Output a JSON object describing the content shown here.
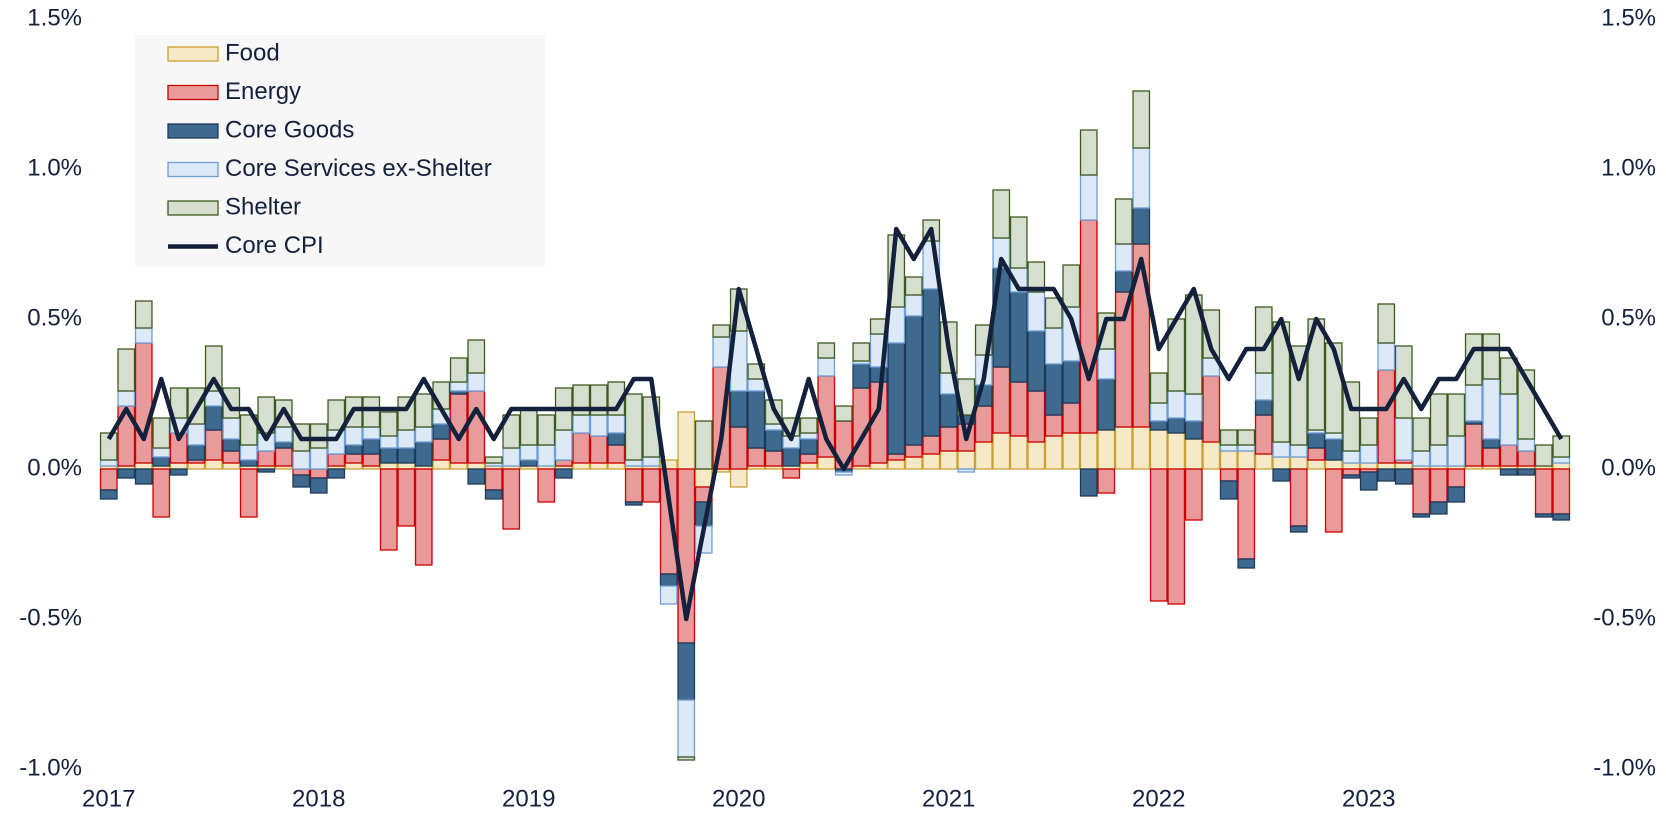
{
  "chart_data": {
    "type": "bar",
    "stacked": true,
    "legend": "upper left",
    "grid": false,
    "categories": [
      "2017",
      null,
      null,
      null,
      null,
      null,
      null,
      null,
      null,
      null,
      null,
      null,
      "2018",
      null,
      null,
      null,
      null,
      null,
      null,
      null,
      null,
      null,
      null,
      null,
      "2019",
      null,
      null,
      null,
      null,
      null,
      null,
      null,
      null,
      null,
      null,
      null,
      "2020",
      null,
      null,
      null,
      null,
      null,
      null,
      null,
      null,
      null,
      null,
      null,
      "2021",
      null,
      null,
      null,
      null,
      null,
      null,
      null,
      null,
      null,
      null,
      null,
      "2022",
      null,
      null,
      null,
      null,
      null,
      null,
      null,
      null,
      null,
      null,
      null,
      "2023",
      null,
      null,
      null,
      null,
      null,
      null,
      null,
      null,
      null,
      null,
      null
    ],
    "ylim": [
      -1.0,
      1.5
    ],
    "yticks": [
      {
        "value": -1.0,
        "label": "-1.0%"
      },
      {
        "value": -0.5,
        "label": "-0.5%"
      },
      {
        "value": 0,
        "label": "0.0%"
      },
      {
        "value": 0.5,
        "label": "0.5%"
      },
      {
        "value": 1.0,
        "label": "1.0%"
      },
      {
        "value": 1.5,
        "label": "1.5%"
      }
    ],
    "y2lim": [
      -1.0,
      1.5
    ],
    "y2ticks": [
      {
        "value": -1.0,
        "label": "-1.0%"
      },
      {
        "value": -0.5,
        "label": "-0.5%"
      },
      {
        "value": 0,
        "label": "0.0%"
      },
      {
        "value": 0.5,
        "label": "0.5%"
      },
      {
        "value": 1.0,
        "label": "1.0%"
      },
      {
        "value": 1.5,
        "label": "1.5%"
      }
    ],
    "series": [
      {
        "name": "Food",
        "type": "bar",
        "color": "#f5e9c8",
        "edge": "#c9a032",
        "values": [
          0.01,
          0.01,
          0.02,
          0.01,
          0.02,
          0.02,
          0.03,
          0.02,
          0.01,
          0.01,
          0.01,
          0,
          0,
          0.01,
          0.02,
          0.01,
          0.02,
          0.02,
          0.01,
          0.03,
          0.02,
          0.02,
          0.01,
          0.01,
          0.01,
          0.01,
          0.01,
          0.02,
          0.02,
          0.02,
          0.01,
          0.01,
          0.03,
          0.19,
          -0.06,
          -0.01,
          -0.06,
          0.01,
          0.01,
          0.01,
          0.02,
          0.04,
          0,
          0.01,
          0.02,
          0.03,
          0.04,
          0.05,
          0.06,
          0.06,
          0.09,
          0.12,
          0.11,
          0.09,
          0.11,
          0.12,
          0.12,
          0.13,
          0.14,
          0.14,
          0.13,
          0.12,
          0.1,
          0.09,
          0.06,
          0.06,
          0.05,
          0.04,
          0.04,
          0.03,
          0.03,
          0.02,
          0.02,
          0.02,
          0.02,
          0.01,
          0.01,
          0.01,
          0.01,
          0.01,
          0.01,
          0.01,
          0.01,
          0.02
        ]
      },
      {
        "name": "Energy",
        "type": "bar",
        "color": "#e99b9b",
        "edge": "#cc0000",
        "values": [
          -0.07,
          0.2,
          0.4,
          -0.16,
          0.1,
          0.01,
          0.1,
          0.04,
          -0.16,
          0.05,
          0.06,
          -0.02,
          -0.03,
          0.04,
          0.03,
          0.04,
          -0.27,
          -0.19,
          -0.32,
          0.07,
          0.23,
          0.24,
          -0.07,
          -0.2,
          0,
          -0.11,
          0.02,
          0.1,
          0.09,
          0.06,
          -0.11,
          -0.11,
          -0.35,
          -0.58,
          -0.05,
          0.34,
          0.14,
          0.06,
          0.05,
          -0.03,
          0.03,
          0.27,
          0.16,
          0.26,
          0.27,
          0.02,
          0.04,
          0.06,
          0.08,
          0.09,
          0.12,
          0.22,
          0.18,
          0.17,
          0.07,
          0.1,
          0.71,
          -0.08,
          0.45,
          0.61,
          -0.44,
          -0.45,
          -0.17,
          0.22,
          -0.04,
          -0.3,
          0.13,
          0,
          -0.19,
          0.04,
          -0.21,
          -0.02,
          -0.01,
          0.31,
          0.01,
          -0.15,
          -0.11,
          -0.06,
          0.14,
          0.06,
          0.07,
          0.05,
          -0.15,
          -0.15
        ]
      },
      {
        "name": "Core Goods",
        "type": "bar",
        "color": "#3e6a8f",
        "edge": "#1e3a58",
        "values": [
          -0.03,
          -0.03,
          -0.05,
          0.03,
          -0.02,
          0.05,
          0.08,
          0.04,
          0.02,
          -0.01,
          0.02,
          -0.04,
          -0.05,
          -0.03,
          0.03,
          0.05,
          0.05,
          0.05,
          0.08,
          0.05,
          0.01,
          -0.05,
          -0.03,
          0,
          0.02,
          0,
          -0.03,
          0,
          0,
          0.04,
          -0.01,
          0,
          -0.04,
          -0.19,
          -0.08,
          0,
          0.12,
          0.19,
          0.07,
          0.06,
          0.05,
          0,
          -0.01,
          0.08,
          0.05,
          0.37,
          0.43,
          0.49,
          0.11,
          0.03,
          0.07,
          0.33,
          0.3,
          0.2,
          0.17,
          0.14,
          -0.09,
          0.17,
          0.07,
          0.12,
          0.03,
          0.05,
          0.06,
          0,
          -0.06,
          -0.03,
          0.05,
          -0.04,
          -0.02,
          0.05,
          0.07,
          -0.01,
          -0.06,
          -0.04,
          -0.05,
          -0.01,
          -0.04,
          -0.05,
          0.01,
          0.03,
          -0.02,
          -0.02,
          -0.01,
          -0.02
        ]
      },
      {
        "name": "Core Services ex-Shelter",
        "type": "bar",
        "color": "#dce9f6",
        "edge": "#6f9fd8",
        "values": [
          0.02,
          0.05,
          0.05,
          0.03,
          0.05,
          0.07,
          0.05,
          0.07,
          0.05,
          0.06,
          0.05,
          0.06,
          0.07,
          0.08,
          0.06,
          0.04,
          0.04,
          0.06,
          0.05,
          0.05,
          0.03,
          0.06,
          0.01,
          0.06,
          0.05,
          0.07,
          0.1,
          0.06,
          0.07,
          0.06,
          0.02,
          0.03,
          -0.06,
          -0.19,
          -0.09,
          0.1,
          0.2,
          0.04,
          0.02,
          0.04,
          0.02,
          0.06,
          -0.01,
          0.01,
          0.11,
          0.12,
          0.07,
          0.16,
          0.07,
          -0.01,
          0.1,
          0.1,
          0.08,
          0.13,
          0.12,
          0.18,
          0.15,
          0.1,
          0.09,
          0.2,
          0.06,
          0.09,
          0.09,
          0.06,
          0.02,
          0.02,
          0.09,
          0.05,
          0.04,
          0.01,
          0.02,
          0.04,
          0.06,
          0.09,
          0.14,
          0.05,
          0.07,
          0.1,
          0.12,
          0.2,
          0.17,
          0.04,
          0,
          0.02
        ]
      },
      {
        "name": "Shelter",
        "type": "bar",
        "color": "#d6dfcf",
        "edge": "#3d5a1e",
        "values": [
          0.09,
          0.14,
          0.09,
          0.1,
          0.1,
          0.12,
          0.15,
          0.1,
          0.1,
          0.12,
          0.09,
          0.09,
          0.08,
          0.1,
          0.1,
          0.1,
          0.08,
          0.11,
          0.11,
          0.09,
          0.08,
          0.11,
          0.02,
          0.11,
          0.12,
          0.1,
          0.14,
          0.1,
          0.1,
          0.11,
          0.22,
          0.2,
          0,
          -0.01,
          0.16,
          0.04,
          0.14,
          0.05,
          0.08,
          0.06,
          0.05,
          0.05,
          0.05,
          0.06,
          0.05,
          0.24,
          0.06,
          0.07,
          0.17,
          0.12,
          0.1,
          0.16,
          0.17,
          0.1,
          0.1,
          0.14,
          0.15,
          0.12,
          0.15,
          0.19,
          0.1,
          0.24,
          0.33,
          0.16,
          0.05,
          0.05,
          0.22,
          0.4,
          0.33,
          0.37,
          0.3,
          0.23,
          0.09,
          0.13,
          0.24,
          0.11,
          0.17,
          0.14,
          0.17,
          0.15,
          0.12,
          0.23,
          0.07,
          0.07
        ]
      },
      {
        "name": "Core CPI",
        "type": "line",
        "color": "#14213d",
        "values": [
          0.1,
          0.2,
          0.1,
          0.3,
          0.1,
          0.2,
          0.3,
          0.2,
          0.2,
          0.1,
          0.2,
          0.1,
          0.1,
          0.1,
          0.2,
          0.2,
          0.2,
          0.2,
          0.3,
          0.2,
          0.1,
          0.2,
          0.1,
          0.2,
          0.2,
          0.2,
          0.2,
          0.2,
          0.2,
          0.2,
          0.3,
          0.3,
          -0.1,
          -0.5,
          -0.2,
          0.1,
          0.6,
          0.4,
          0.2,
          0.1,
          0.3,
          0.1,
          0,
          0.1,
          0.2,
          0.8,
          0.7,
          0.8,
          0.4,
          0.1,
          0.3,
          0.7,
          0.6,
          0.6,
          0.6,
          0.5,
          0.3,
          0.5,
          0.5,
          0.7,
          0.4,
          0.5,
          0.6,
          0.4,
          0.3,
          0.4,
          0.4,
          0.5,
          0.3,
          0.5,
          0.4,
          0.2,
          0.2,
          0.2,
          0.3,
          0.2,
          0.3,
          0.3,
          0.4,
          0.4,
          0.4,
          0.3,
          0.2,
          0.1
        ]
      }
    ]
  }
}
